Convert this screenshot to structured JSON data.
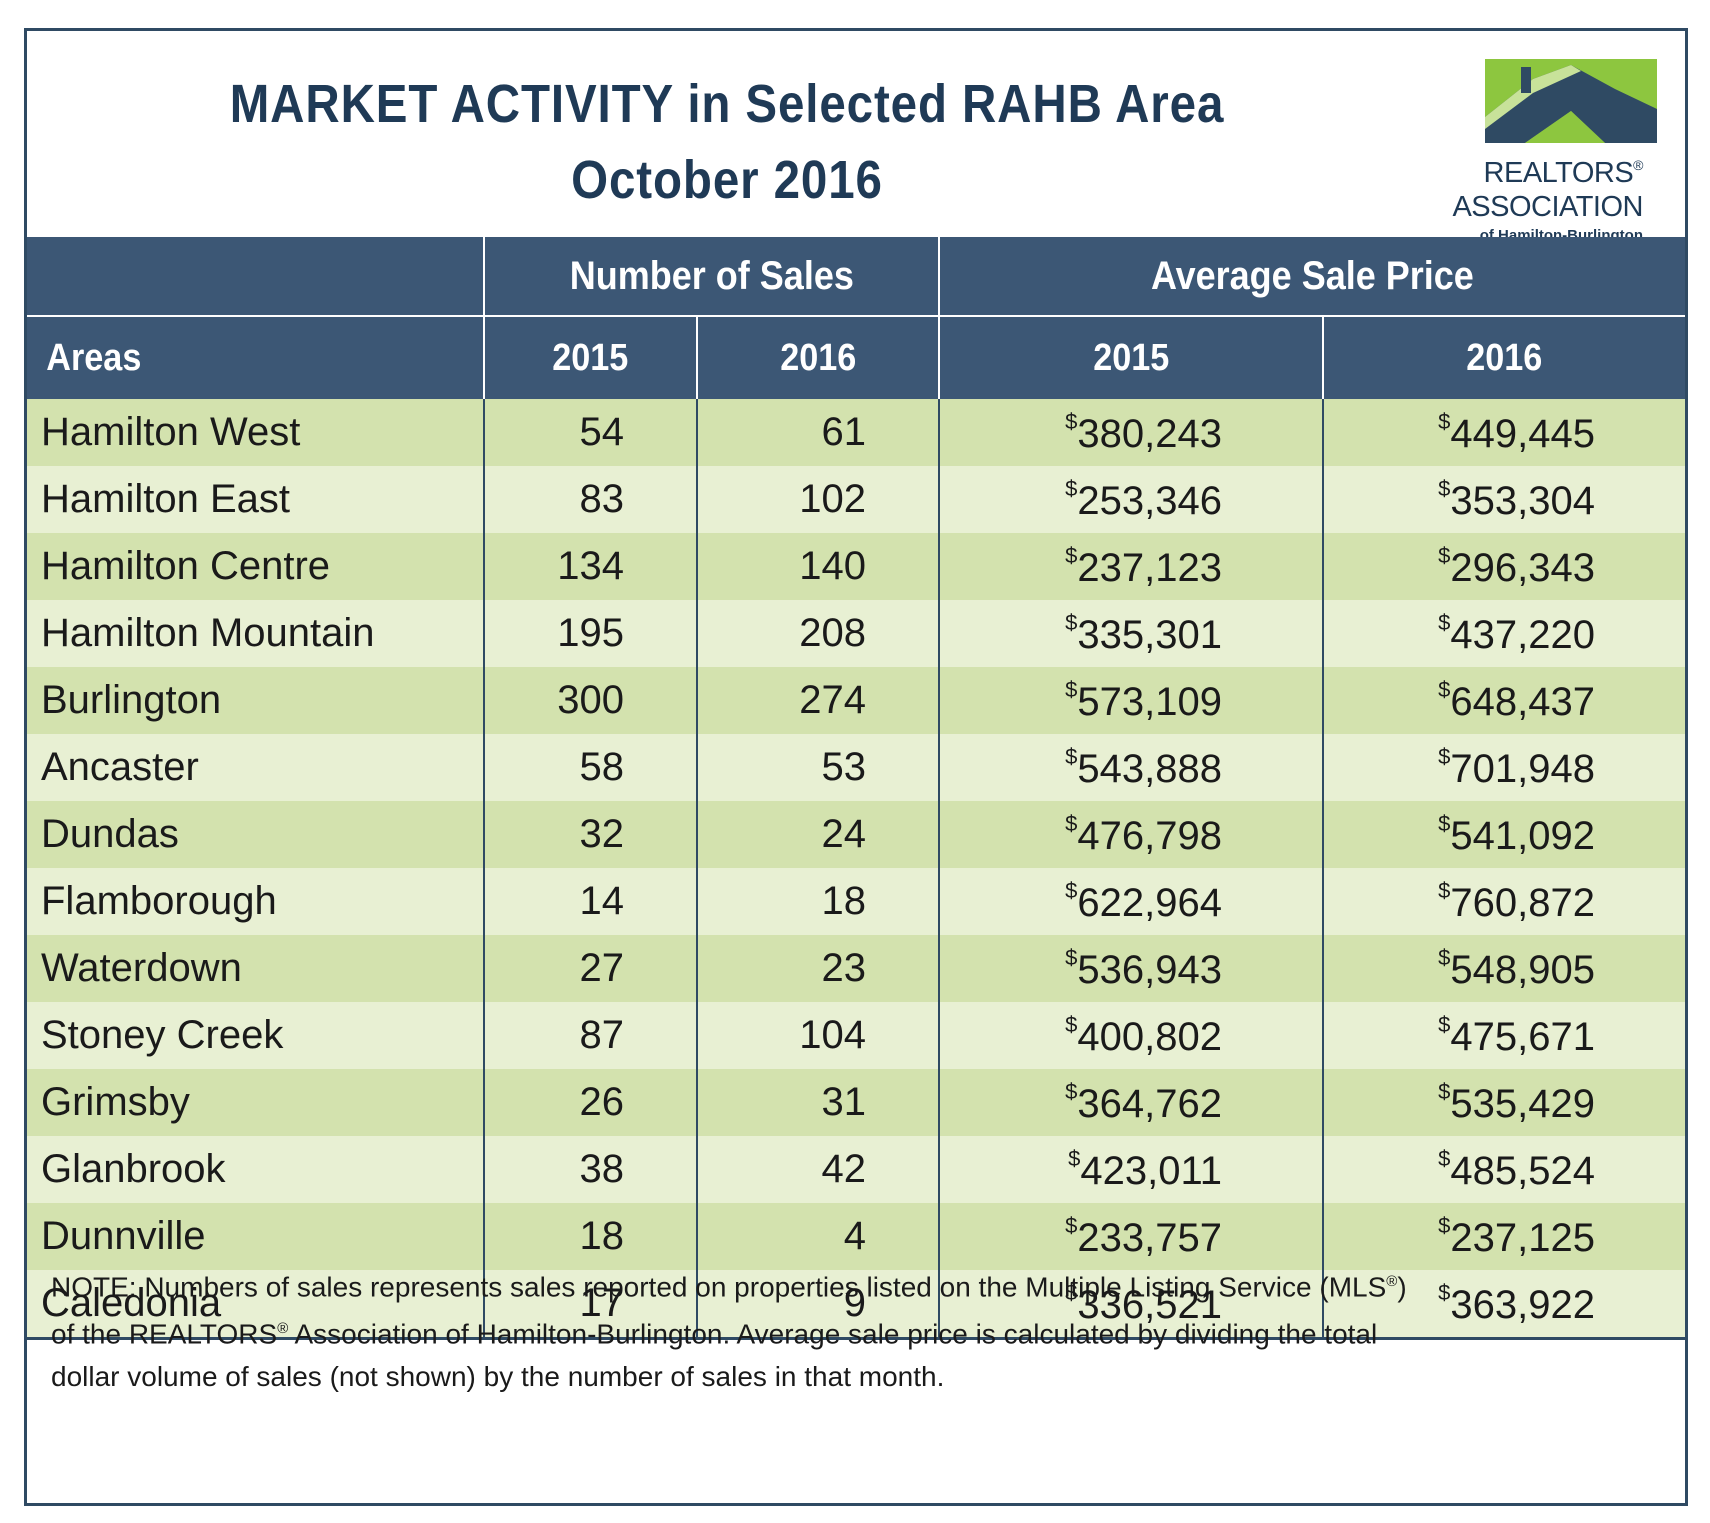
{
  "title": {
    "line1": "MARKET ACTIVITY in Selected RAHB Area",
    "line2": "October 2016"
  },
  "logo": {
    "line1": "REALTORS",
    "line2": "ASSOCIATION",
    "line3": "of Hamilton-Burlington",
    "registered": "®",
    "colors": {
      "green": "#8dc63f",
      "navy": "#2f4a63"
    }
  },
  "table": {
    "group_headers": {
      "blank": "",
      "sales": "Number of Sales",
      "price": "Average Sale Price"
    },
    "sub_headers": {
      "areas": "Areas",
      "sales_2015": "2015",
      "sales_2016": "2016",
      "price_2015": "2015",
      "price_2016": "2016"
    },
    "currency_symbol": "$",
    "rows": [
      {
        "area": "Hamilton West",
        "sales_2015": "54",
        "sales_2016": "61",
        "price_2015": "380,243",
        "price_2016": "449,445"
      },
      {
        "area": "Hamilton East",
        "sales_2015": "83",
        "sales_2016": "102",
        "price_2015": "253,346",
        "price_2016": "353,304"
      },
      {
        "area": "Hamilton Centre",
        "sales_2015": "134",
        "sales_2016": "140",
        "price_2015": "237,123",
        "price_2016": "296,343"
      },
      {
        "area": "Hamilton Mountain",
        "sales_2015": "195",
        "sales_2016": "208",
        "price_2015": "335,301",
        "price_2016": "437,220"
      },
      {
        "area": "Burlington",
        "sales_2015": "300",
        "sales_2016": "274",
        "price_2015": "573,109",
        "price_2016": "648,437"
      },
      {
        "area": "Ancaster",
        "sales_2015": "58",
        "sales_2016": "53",
        "price_2015": "543,888",
        "price_2016": "701,948"
      },
      {
        "area": "Dundas",
        "sales_2015": "32",
        "sales_2016": "24",
        "price_2015": "476,798",
        "price_2016": "541,092"
      },
      {
        "area": "Flamborough",
        "sales_2015": "14",
        "sales_2016": "18",
        "price_2015": "622,964",
        "price_2016": "760,872"
      },
      {
        "area": "Waterdown",
        "sales_2015": "27",
        "sales_2016": "23",
        "price_2015": "536,943",
        "price_2016": "548,905"
      },
      {
        "area": "Stoney Creek",
        "sales_2015": "87",
        "sales_2016": "104",
        "price_2015": "400,802",
        "price_2016": "475,671"
      },
      {
        "area": "Grimsby",
        "sales_2015": "26",
        "sales_2016": "31",
        "price_2015": "364,762",
        "price_2016": "535,429"
      },
      {
        "area": "Glanbrook",
        "sales_2015": "38",
        "sales_2016": "42",
        "price_2015": "423,011",
        "price_2016": "485,524"
      },
      {
        "area": "Dunnville",
        "sales_2015": "18",
        "sales_2016": "4",
        "price_2015": "233,757",
        "price_2016": "237,125"
      },
      {
        "area": "Caledonia",
        "sales_2015": "17",
        "sales_2016": "9",
        "price_2015": "336,521",
        "price_2016": "363,922"
      }
    ]
  },
  "note": {
    "p1": "NOTE:  Numbers of sales represents sales reported on properties listed on the Multiple Listing Service (MLS",
    "reg": "®",
    "p2": ")",
    "p3": "of the REALTORS",
    "p4": " Association of Hamilton-Burlington.  Average sale price is calculated by dividing the total",
    "p5": "dollar volume of sales (not shown) by the number of sales in that month."
  },
  "colors": {
    "header_bg": "#3c5775",
    "title_text": "#1f3a56",
    "row_dark": "#d3e2ae",
    "row_light": "#e8f0d3",
    "border": "#2f4a63"
  }
}
